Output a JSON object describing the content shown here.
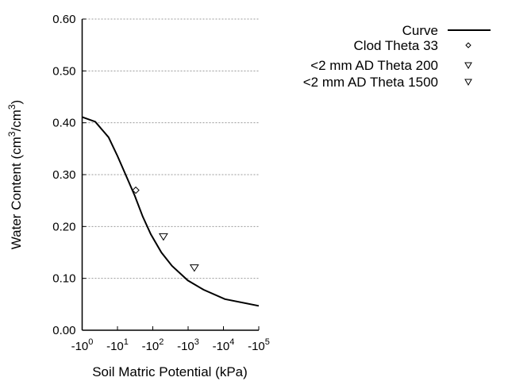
{
  "chart_data": {
    "type": "line",
    "xlabel": "Soil Matric Potential (kPa)",
    "ylabel_main": "Water Content (cm",
    "ylabel_sup1": "3",
    "ylabel_mid": "/cm",
    "ylabel_sup2": "3",
    "ylabel_end": ")",
    "x_scale": "log (negative potentials)",
    "xlim": [
      1,
      100000
    ],
    "ylim": [
      0,
      0.6
    ],
    "x_ticks": [
      {
        "base": "-10",
        "exp": "0"
      },
      {
        "base": "-10",
        "exp": "1"
      },
      {
        "base": "-10",
        "exp": "2"
      },
      {
        "base": "-10",
        "exp": "3"
      },
      {
        "base": "-10",
        "exp": "4"
      },
      {
        "base": "-10",
        "exp": "5"
      }
    ],
    "y_ticks": [
      "0.00",
      "0.10",
      "0.20",
      "0.30",
      "0.40",
      "0.50",
      "0.60"
    ],
    "grid": "horizontal dotted",
    "legend_placement": "top-right outside",
    "series": [
      {
        "name": "Curve",
        "kind": "line",
        "color": "#000000",
        "x": [
          1,
          2.35,
          5.6,
          10,
          17,
          31,
          52,
          88,
          175,
          350,
          980,
          2750,
          11000,
          100000
        ],
        "y": [
          0.411,
          0.402,
          0.372,
          0.336,
          0.3,
          0.259,
          0.219,
          0.185,
          0.15,
          0.124,
          0.096,
          0.078,
          0.06,
          0.047
        ]
      },
      {
        "name": "Clod Theta 33",
        "kind": "diamond",
        "x": [
          33
        ],
        "y": [
          0.27
        ]
      },
      {
        "name": "<2 mm AD Theta 200",
        "kind": "triangle-down",
        "x": [
          200
        ],
        "y": [
          0.18
        ]
      },
      {
        "name": "<2 mm AD Theta 1500",
        "kind": "triangle-down",
        "x": [
          1500
        ],
        "y": [
          0.12
        ]
      }
    ]
  }
}
